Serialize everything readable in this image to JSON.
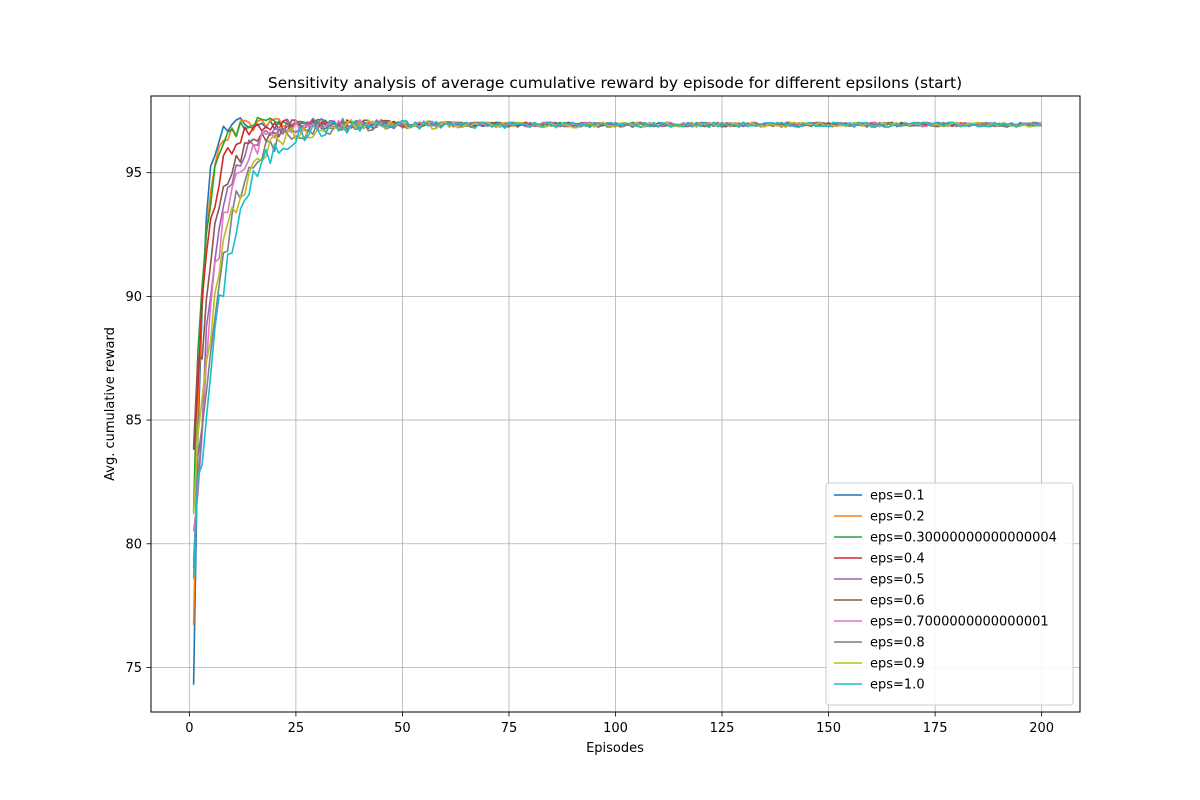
{
  "chart_data": {
    "type": "line",
    "title": "Sensitivity analysis of average cumulative reward by episode for different epsilons (start)",
    "xlabel": "Episodes",
    "ylabel": "Avg. cumulative reward",
    "xlim": [
      -9,
      209
    ],
    "ylim": [
      73.2,
      98.1
    ],
    "xticks": [
      0,
      25,
      50,
      75,
      100,
      125,
      150,
      175,
      200
    ],
    "yticks": [
      75,
      80,
      85,
      90,
      95
    ],
    "grid": true,
    "legend_position": "lower-right",
    "series": [
      {
        "name": "eps=0.1",
        "color": "#1f77b4",
        "start": 74.3,
        "rate": 0.62,
        "noise": 0.25,
        "seed": 11
      },
      {
        "name": "eps=0.2",
        "color": "#ff7f0e",
        "start": 76.7,
        "rate": 0.5,
        "noise": 0.25,
        "seed": 23
      },
      {
        "name": "eps=0.30000000000000004",
        "color": "#2ca02c",
        "start": 81.3,
        "rate": 0.4,
        "noise": 0.3,
        "seed": 37
      },
      {
        "name": "eps=0.4",
        "color": "#d62728",
        "start": 83.8,
        "rate": 0.3,
        "noise": 0.3,
        "seed": 41
      },
      {
        "name": "eps=0.5",
        "color": "#9467bd",
        "start": 79.0,
        "rate": 0.24,
        "noise": 0.35,
        "seed": 53
      },
      {
        "name": "eps=0.6",
        "color": "#8c564b",
        "start": 83.9,
        "rate": 0.22,
        "noise": 0.35,
        "seed": 67
      },
      {
        "name": "eps=0.7000000000000001",
        "color": "#e377c2",
        "start": 80.5,
        "rate": 0.2,
        "noise": 0.35,
        "seed": 71
      },
      {
        "name": "eps=0.8",
        "color": "#7f7f7f",
        "start": 79.3,
        "rate": 0.17,
        "noise": 0.45,
        "seed": 83
      },
      {
        "name": "eps=0.9",
        "color": "#bcbd22",
        "start": 81.2,
        "rate": 0.16,
        "noise": 0.45,
        "seed": 97
      },
      {
        "name": "eps=1.0",
        "color": "#17becf",
        "start": 78.6,
        "rate": 0.15,
        "noise": 0.45,
        "seed": 101
      }
    ],
    "x_range": [
      1,
      200
    ],
    "plateau": 96.95
  }
}
